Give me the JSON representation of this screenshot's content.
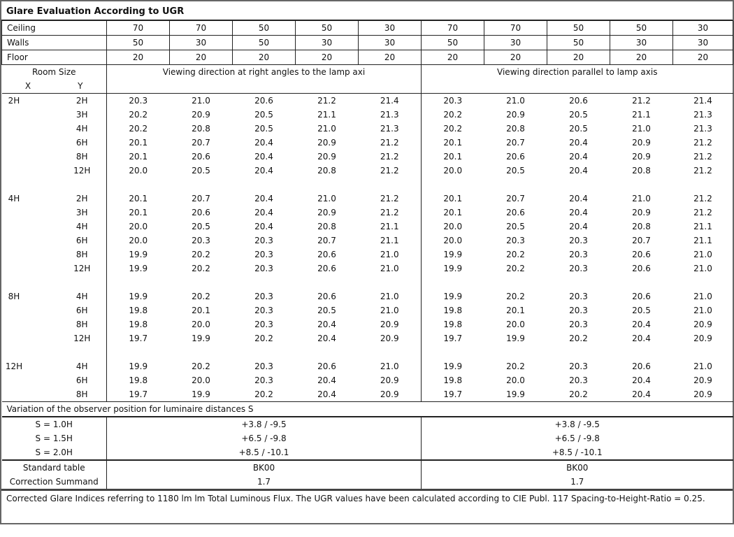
{
  "title": "Glare Evaluation According to UGR",
  "reflectances": [
    {
      "label": "Ceiling",
      "values": [
        "70",
        "70",
        "50",
        "50",
        "30",
        "70",
        "70",
        "50",
        "50",
        "30"
      ]
    },
    {
      "label": "Walls",
      "values": [
        "50",
        "30",
        "50",
        "30",
        "30",
        "50",
        "30",
        "50",
        "30",
        "30"
      ]
    },
    {
      "label": "Floor",
      "values": [
        "20",
        "20",
        "20",
        "20",
        "20",
        "20",
        "20",
        "20",
        "20",
        "20"
      ]
    }
  ],
  "header": {
    "room_size": "Room Size",
    "x": "X",
    "y": "Y",
    "direction_right_angles": "Viewing direction at right angles to the lamp axi",
    "direction_parallel": "Viewing direction parallel to lamp axis"
  },
  "groups": [
    {
      "x": "2H",
      "rows": [
        {
          "y": "2H",
          "v": [
            "20.3",
            "21.0",
            "20.6",
            "21.2",
            "21.4",
            "20.3",
            "21.0",
            "20.6",
            "21.2",
            "21.4"
          ]
        },
        {
          "y": "3H",
          "v": [
            "20.2",
            "20.9",
            "20.5",
            "21.1",
            "21.3",
            "20.2",
            "20.9",
            "20.5",
            "21.1",
            "21.3"
          ]
        },
        {
          "y": "4H",
          "v": [
            "20.2",
            "20.8",
            "20.5",
            "21.0",
            "21.3",
            "20.2",
            "20.8",
            "20.5",
            "21.0",
            "21.3"
          ]
        },
        {
          "y": "6H",
          "v": [
            "20.1",
            "20.7",
            "20.4",
            "20.9",
            "21.2",
            "20.1",
            "20.7",
            "20.4",
            "20.9",
            "21.2"
          ]
        },
        {
          "y": "8H",
          "v": [
            "20.1",
            "20.6",
            "20.4",
            "20.9",
            "21.2",
            "20.1",
            "20.6",
            "20.4",
            "20.9",
            "21.2"
          ]
        },
        {
          "y": "12H",
          "v": [
            "20.0",
            "20.5",
            "20.4",
            "20.8",
            "21.2",
            "20.0",
            "20.5",
            "20.4",
            "20.8",
            "21.2"
          ]
        }
      ]
    },
    {
      "x": "4H",
      "rows": [
        {
          "y": "2H",
          "v": [
            "20.1",
            "20.7",
            "20.4",
            "21.0",
            "21.2",
            "20.1",
            "20.7",
            "20.4",
            "21.0",
            "21.2"
          ]
        },
        {
          "y": "3H",
          "v": [
            "20.1",
            "20.6",
            "20.4",
            "20.9",
            "21.2",
            "20.1",
            "20.6",
            "20.4",
            "20.9",
            "21.2"
          ]
        },
        {
          "y": "4H",
          "v": [
            "20.0",
            "20.5",
            "20.4",
            "20.8",
            "21.1",
            "20.0",
            "20.5",
            "20.4",
            "20.8",
            "21.1"
          ]
        },
        {
          "y": "6H",
          "v": [
            "20.0",
            "20.3",
            "20.3",
            "20.7",
            "21.1",
            "20.0",
            "20.3",
            "20.3",
            "20.7",
            "21.1"
          ]
        },
        {
          "y": "8H",
          "v": [
            "19.9",
            "20.2",
            "20.3",
            "20.6",
            "21.0",
            "19.9",
            "20.2",
            "20.3",
            "20.6",
            "21.0"
          ]
        },
        {
          "y": "12H",
          "v": [
            "19.9",
            "20.2",
            "20.3",
            "20.6",
            "21.0",
            "19.9",
            "20.2",
            "20.3",
            "20.6",
            "21.0"
          ]
        }
      ]
    },
    {
      "x": "8H",
      "rows": [
        {
          "y": "4H",
          "v": [
            "19.9",
            "20.2",
            "20.3",
            "20.6",
            "21.0",
            "19.9",
            "20.2",
            "20.3",
            "20.6",
            "21.0"
          ]
        },
        {
          "y": "6H",
          "v": [
            "19.8",
            "20.1",
            "20.3",
            "20.5",
            "21.0",
            "19.8",
            "20.1",
            "20.3",
            "20.5",
            "21.0"
          ]
        },
        {
          "y": "8H",
          "v": [
            "19.8",
            "20.0",
            "20.3",
            "20.4",
            "20.9",
            "19.8",
            "20.0",
            "20.3",
            "20.4",
            "20.9"
          ]
        },
        {
          "y": "12H",
          "v": [
            "19.7",
            "19.9",
            "20.2",
            "20.4",
            "20.9",
            "19.7",
            "19.9",
            "20.2",
            "20.4",
            "20.9"
          ]
        }
      ]
    },
    {
      "x": "12H",
      "rows": [
        {
          "y": "4H",
          "v": [
            "19.9",
            "20.2",
            "20.3",
            "20.6",
            "21.0",
            "19.9",
            "20.2",
            "20.3",
            "20.6",
            "21.0"
          ]
        },
        {
          "y": "6H",
          "v": [
            "19.8",
            "20.0",
            "20.3",
            "20.4",
            "20.9",
            "19.8",
            "20.0",
            "20.3",
            "20.4",
            "20.9"
          ]
        },
        {
          "y": "8H",
          "v": [
            "19.7",
            "19.9",
            "20.2",
            "20.4",
            "20.9",
            "19.7",
            "19.9",
            "20.2",
            "20.4",
            "20.9"
          ]
        }
      ]
    }
  ],
  "variation": {
    "title": "Variation of the observer position for luminaire distances S",
    "rows": [
      {
        "label": "S = 1.0H",
        "right_angles": "+3.8 / -9.5",
        "parallel": "+3.8 / -9.5"
      },
      {
        "label": "S = 1.5H",
        "right_angles": "+6.5 / -9.8",
        "parallel": "+6.5 / -9.8"
      },
      {
        "label": "S = 2.0H",
        "right_angles": "+8.5 / -10.1",
        "parallel": "+8.5 / -10.1"
      }
    ]
  },
  "standard": [
    {
      "label": "Standard table",
      "right_angles": "BK00",
      "parallel": "BK00"
    },
    {
      "label": "Correction Summand",
      "right_angles": "1.7",
      "parallel": "1.7"
    }
  ],
  "footer": "Corrected Glare Indices referring to 1180 lm lm Total Luminous Flux. The UGR values have been calculated according to CIE Publ. 117    Spacing-to-Height-Ratio = 0.25."
}
